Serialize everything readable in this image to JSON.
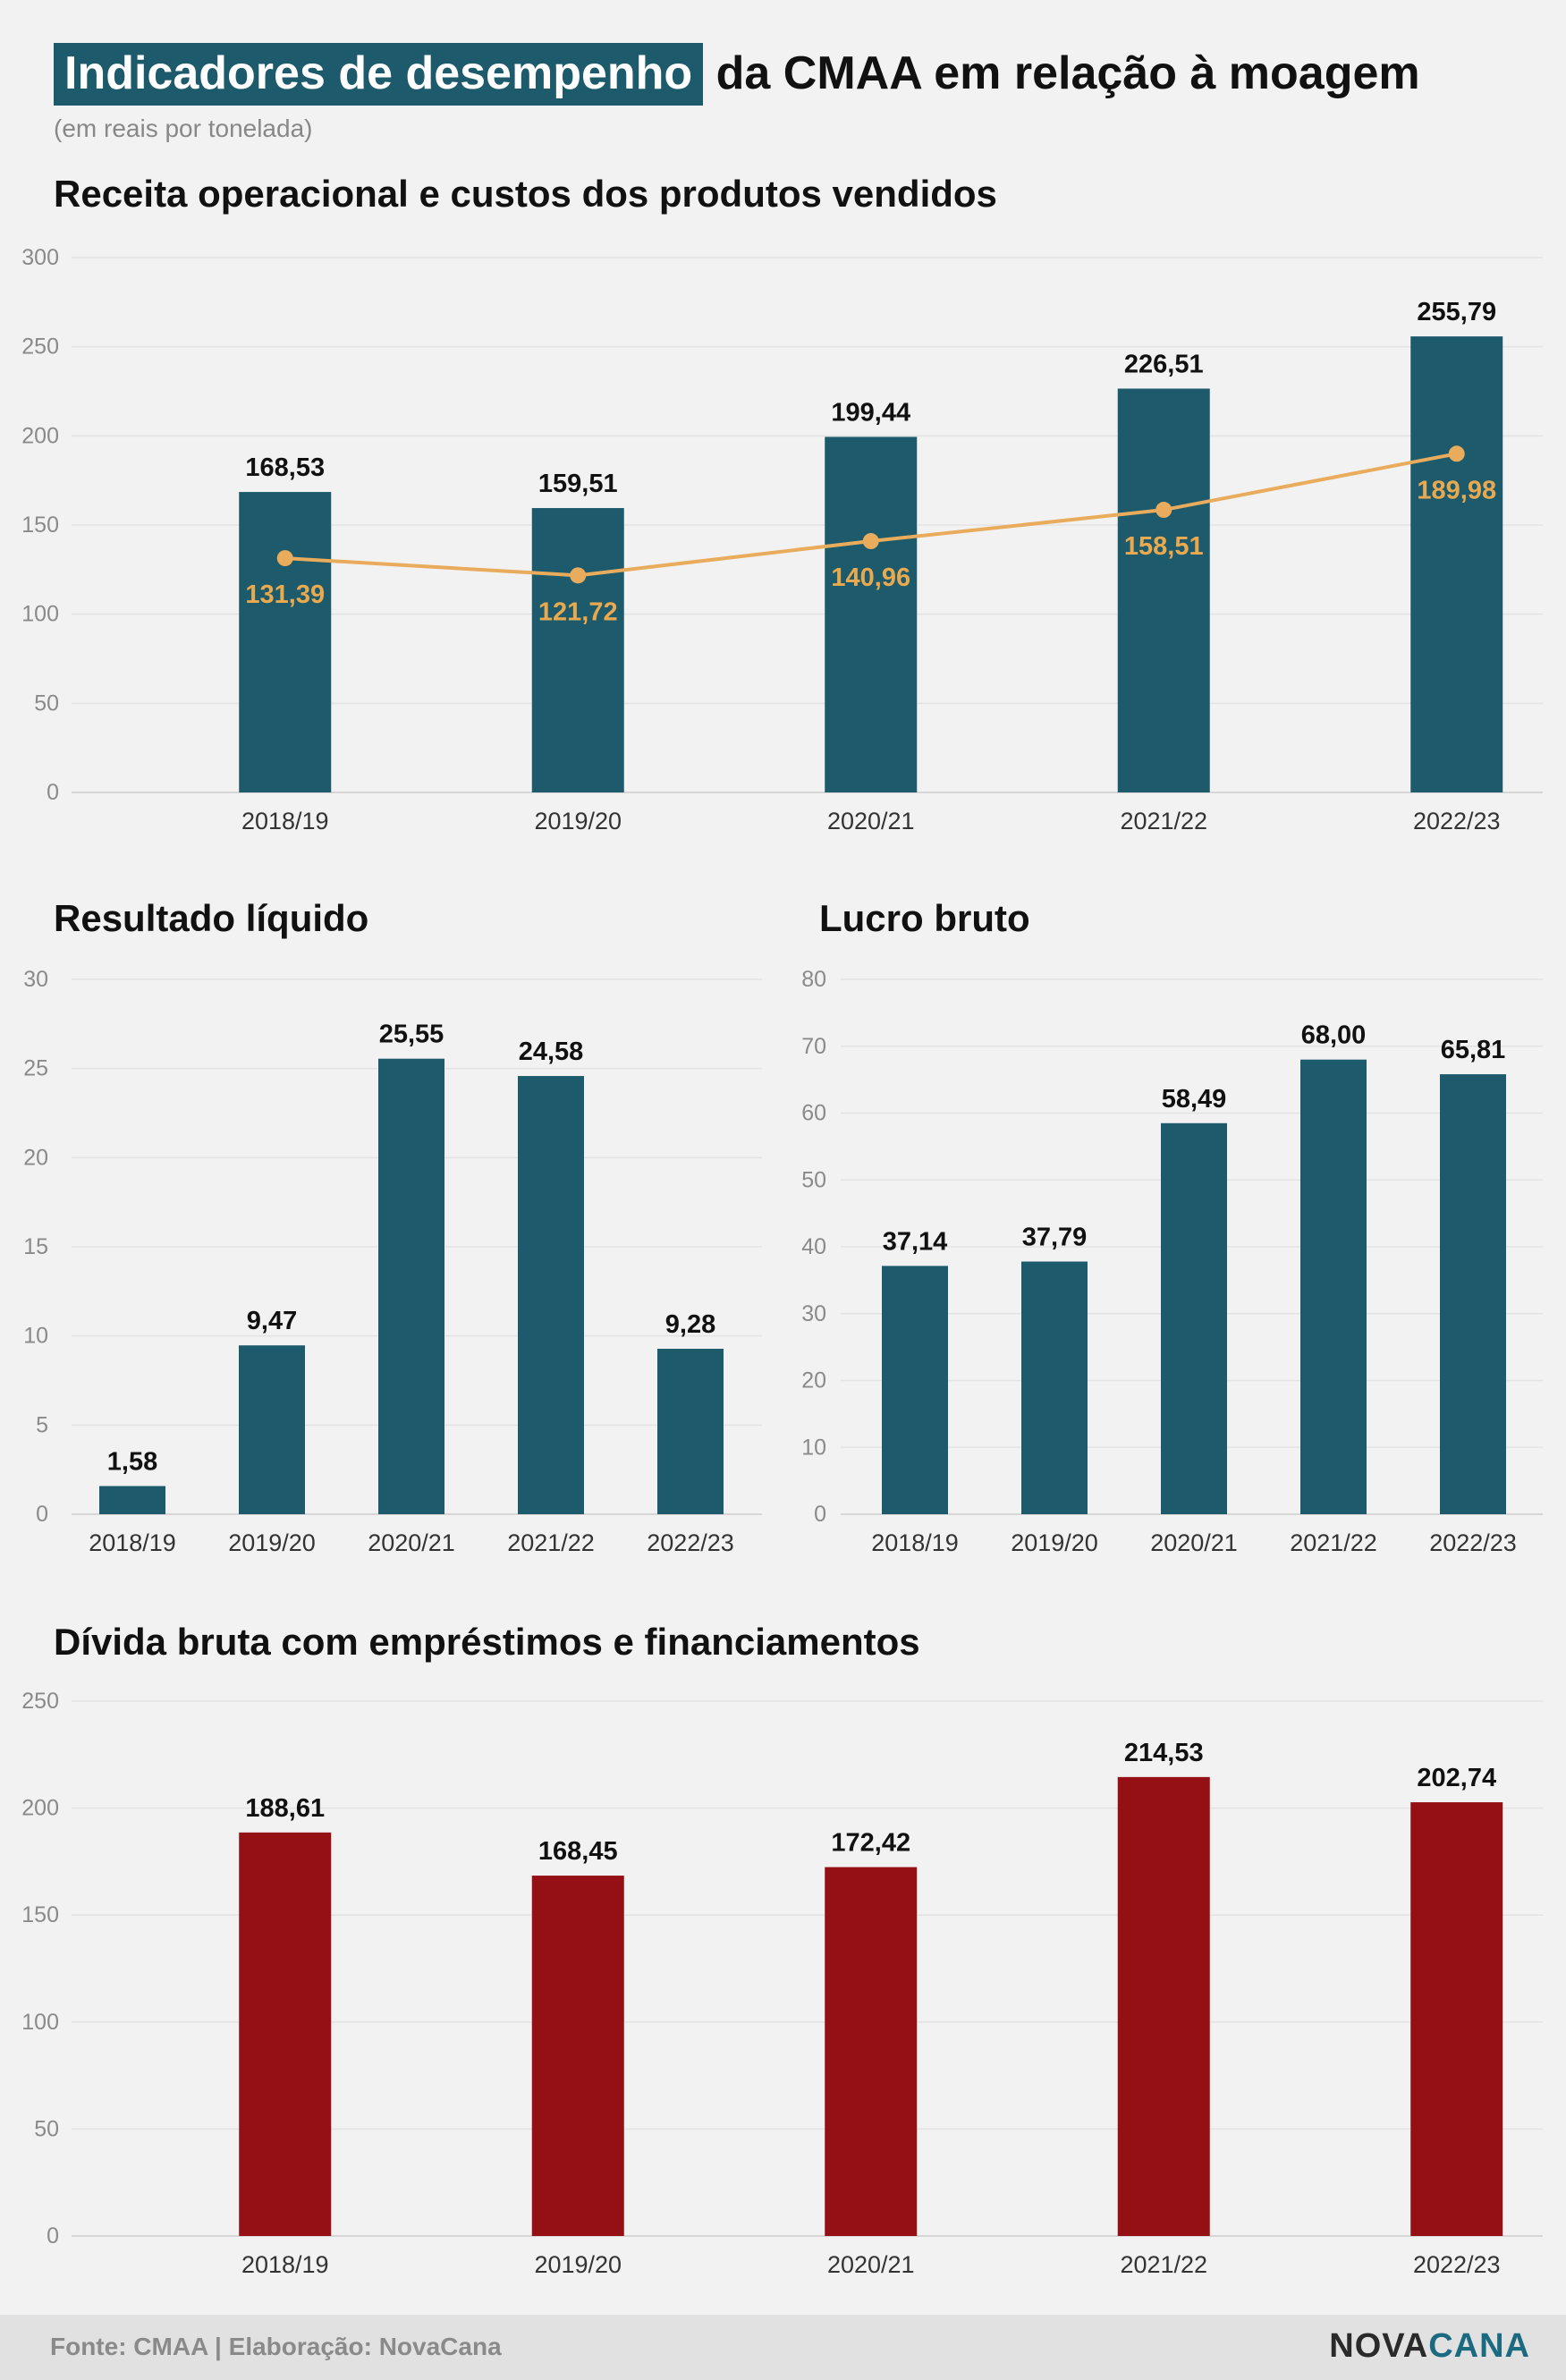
{
  "header": {
    "title_highlight": "Indicadores de desempenho",
    "title_rest": "da CMAA em relação à moagem",
    "subtitle": "(em reais por tonelada)"
  },
  "colors": {
    "teal": "#1c5a6c",
    "red": "#951015",
    "line": "#e9ab5c",
    "line_label": "#e9a94f"
  },
  "chart_data": [
    {
      "id": "receita",
      "type": "bar",
      "title": "Receita operacional e custos dos produtos vendidos",
      "categories": [
        "2018/19",
        "2019/20",
        "2020/21",
        "2021/22",
        "2022/23"
      ],
      "series": [
        {
          "type": "bar",
          "values": [
            168.53,
            159.51,
            199.44,
            226.51,
            255.79
          ],
          "labels": [
            "168,53",
            "159,51",
            "199,44",
            "226,51",
            "255,79"
          ]
        },
        {
          "type": "line",
          "values": [
            131.39,
            121.72,
            140.96,
            158.51,
            189.98
          ],
          "labels": [
            "131,39",
            "121,72",
            "140,96",
            "158,51",
            "189,98"
          ]
        }
      ],
      "ylim": [
        0,
        300
      ],
      "yticks": [
        0,
        50,
        100,
        150,
        200,
        250,
        300
      ],
      "grid": true
    },
    {
      "id": "resultado",
      "type": "bar",
      "title": "Resultado líquido",
      "categories": [
        "2018/19",
        "2019/20",
        "2020/21",
        "2021/22",
        "2022/23"
      ],
      "values": [
        1.58,
        9.47,
        25.55,
        24.58,
        9.28
      ],
      "labels": [
        "1,58",
        "9,47",
        "25,55",
        "24,58",
        "9,28"
      ],
      "ylim": [
        0,
        30
      ],
      "yticks": [
        0,
        5,
        10,
        15,
        20,
        25,
        30
      ],
      "grid": true
    },
    {
      "id": "lucro",
      "type": "bar",
      "title": "Lucro bruto",
      "categories": [
        "2018/19",
        "2019/20",
        "2020/21",
        "2021/22",
        "2022/23"
      ],
      "values": [
        37.14,
        37.79,
        58.49,
        68.0,
        65.81
      ],
      "labels": [
        "37,14",
        "37,79",
        "58,49",
        "68,00",
        "65,81"
      ],
      "ylim": [
        0,
        80
      ],
      "yticks": [
        0,
        10,
        20,
        30,
        40,
        50,
        60,
        70,
        80
      ],
      "grid": true
    },
    {
      "id": "divida",
      "type": "bar",
      "title": "Dívida bruta com empréstimos e financiamentos",
      "categories": [
        "2018/19",
        "2019/20",
        "2020/21",
        "2021/22",
        "2022/23"
      ],
      "values": [
        188.61,
        168.45,
        172.42,
        214.53,
        202.74
      ],
      "labels": [
        "188,61",
        "168,45",
        "172,42",
        "214,53",
        "202,74"
      ],
      "ylim": [
        0,
        250
      ],
      "yticks": [
        0,
        50,
        100,
        150,
        200,
        250
      ],
      "grid": true
    }
  ],
  "footer": {
    "source": "Fonte: CMAA | Elaboração: NovaCana",
    "logo_part1": "NOVA",
    "logo_part2": "CANA"
  }
}
